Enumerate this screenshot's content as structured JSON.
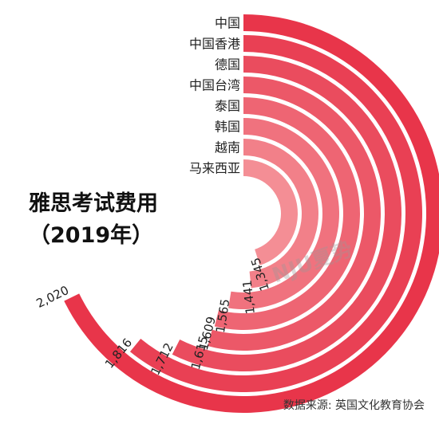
{
  "chart_data": {
    "type": "radial-bar",
    "title": "雅思考试费用",
    "subtitle": "（2019年）",
    "categories": [
      "中国",
      "中国香港",
      "德国",
      "中国台湾",
      "泰国",
      "韩国",
      "越南",
      "马来西亚"
    ],
    "values": [
      2020,
      1816,
      1712,
      1615,
      1609,
      1565,
      1441,
      1345
    ],
    "value_labels": [
      "2,020",
      "1,816",
      "1,712",
      "1,615",
      "1,609",
      "1,565",
      "1,441",
      "1,345"
    ],
    "colors": [
      "#e8354a",
      "#e94054",
      "#ea4c5e",
      "#ec5868",
      "#ee6573",
      "#f0727e",
      "#f28089",
      "#f48e95"
    ]
  },
  "source_text": "数据来源: 英国文化教育协会",
  "watermark_text": "NJU夏势"
}
